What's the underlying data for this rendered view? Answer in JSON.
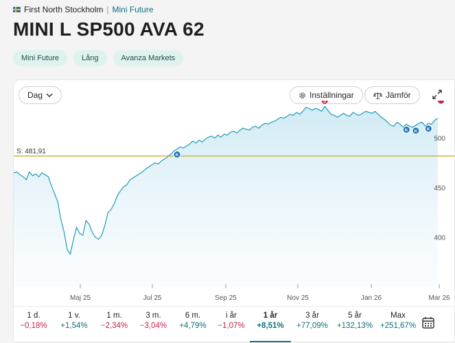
{
  "breadcrumb": {
    "market": "First North Stockholm",
    "separator": "|",
    "category": "Mini Future"
  },
  "instrument": {
    "name": "MINI L SP500 AVA 62"
  },
  "tags": [
    "Mini Future",
    "Lång",
    "Avanza Markets"
  ],
  "toolbar": {
    "interval": "Dag",
    "settings": "Inställningar",
    "compare": "Jämför"
  },
  "chart_data": {
    "type": "area",
    "x_labels": [
      "Maj 25",
      "Jul 25",
      "Sep 25",
      "Nov 25",
      "Jan 26",
      "Mar 26"
    ],
    "y_ticks": [
      400,
      450,
      500
    ],
    "ylim": [
      350,
      535
    ],
    "stop_loss": {
      "label": "S: 481,91",
      "value": 481.91
    },
    "series": [
      {
        "values": [
          465,
          466,
          463,
          461,
          458,
          466,
          462,
          464,
          461,
          465,
          463,
          461,
          452,
          444,
          436,
          418,
          406,
          388,
          383,
          398,
          410,
          404,
          402,
          417,
          413,
          405,
          400,
          398,
          402,
          412,
          425,
          428,
          434,
          442,
          447,
          451,
          453,
          458,
          460,
          462,
          464,
          466,
          469,
          471,
          473,
          475,
          474,
          477,
          479,
          481,
          484,
          487,
          489,
          491,
          490,
          492,
          494,
          497,
          495,
          498,
          496,
          499,
          501,
          502,
          500,
          503,
          501,
          504,
          503,
          506,
          507,
          505,
          508,
          510,
          509,
          508,
          511,
          512,
          510,
          513,
          515,
          514,
          516,
          517,
          519,
          521,
          520,
          522,
          524,
          523,
          526,
          524,
          527,
          531,
          530,
          528,
          530,
          529,
          527,
          532,
          528,
          524,
          523,
          521,
          523,
          525,
          523,
          522,
          526,
          524,
          523,
          525,
          527,
          526,
          525,
          527,
          524,
          521,
          519,
          516,
          513,
          512,
          516,
          514,
          511,
          514,
          512,
          511,
          513,
          515,
          516,
          512,
          515,
          514,
          518,
          520
        ],
        "color": "#1f9bb4"
      }
    ],
    "markers": [
      {
        "label": "K",
        "color": "#1b6db3",
        "index": 52
      },
      {
        "label": "S",
        "color": "#c4244a",
        "index": 99
      },
      {
        "label": "K",
        "color": "#1b6db3",
        "index": 125
      },
      {
        "label": "K",
        "color": "#1b6db3",
        "index": 128
      },
      {
        "label": "K",
        "color": "#1b6db3",
        "index": 132
      },
      {
        "label": "S",
        "color": "#c4244a",
        "index": 136
      }
    ]
  },
  "periods": [
    {
      "label": "1 d.",
      "value": "−0,18%",
      "sign": "neg"
    },
    {
      "label": "1 v.",
      "value": "+1,54%",
      "sign": "pos"
    },
    {
      "label": "1 m.",
      "value": "−2,34%",
      "sign": "neg"
    },
    {
      "label": "3 m.",
      "value": "−3,04%",
      "sign": "neg"
    },
    {
      "label": "6 m.",
      "value": "+4,79%",
      "sign": "pos"
    },
    {
      "label": "i år",
      "value": "−1,07%",
      "sign": "neg"
    },
    {
      "label": "1 år",
      "value": "+8,51%",
      "sign": "pos",
      "active": true
    },
    {
      "label": "3 år",
      "value": "+77,09%",
      "sign": "pos"
    },
    {
      "label": "5 år",
      "value": "+132,13%",
      "sign": "pos"
    },
    {
      "label": "Max",
      "value": "+251,67%",
      "sign": "pos"
    }
  ]
}
